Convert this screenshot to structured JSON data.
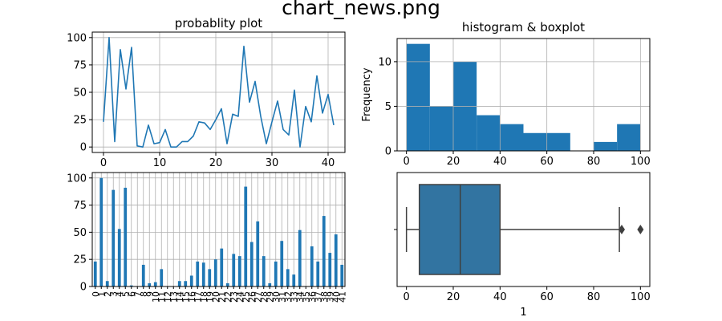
{
  "figure": {
    "suptitle": "chart_news.png"
  },
  "colors": {
    "series": "#1f77b4",
    "box": "#3274a1",
    "box_edge": "#3f3f3f",
    "grid": "#b0b0b0"
  },
  "chart_data": [
    {
      "id": "probability",
      "type": "line",
      "title": "probablity plot",
      "xlabel": "",
      "ylabel": "",
      "xlim": [
        -2,
        43
      ],
      "ylim": [
        -5,
        105
      ],
      "xticks": [
        0,
        10,
        20,
        30,
        40
      ],
      "yticks": [
        0,
        25,
        50,
        75,
        100
      ],
      "grid": true,
      "x": [
        0,
        1,
        2,
        3,
        4,
        5,
        6,
        7,
        8,
        9,
        10,
        11,
        12,
        13,
        14,
        15,
        16,
        17,
        18,
        19,
        20,
        21,
        22,
        23,
        24,
        25,
        26,
        27,
        28,
        29,
        30,
        31,
        32,
        33,
        34,
        35,
        36,
        37,
        38,
        39,
        40,
        41
      ],
      "values": [
        23,
        100,
        5,
        89,
        53,
        91,
        1,
        0,
        20,
        3,
        4,
        16,
        0,
        0,
        5,
        5,
        10,
        23,
        22,
        16,
        25,
        35,
        3,
        30,
        28,
        92,
        41,
        60,
        28,
        3,
        23,
        42,
        16,
        11,
        52,
        0,
        37,
        23,
        65,
        31,
        48,
        20
      ]
    },
    {
      "id": "histogram",
      "type": "bar",
      "title": "histogram & boxplot",
      "xlabel": "",
      "ylabel": "Frequency",
      "xlim": [
        -4,
        104
      ],
      "ylim": [
        0,
        12.6
      ],
      "xticks": [
        0,
        20,
        40,
        60,
        80,
        100
      ],
      "yticks": [
        0,
        5,
        10
      ],
      "grid": true,
      "bins": [
        [
          0,
          10
        ],
        [
          10,
          20
        ],
        [
          20,
          30
        ],
        [
          30,
          40
        ],
        [
          40,
          50
        ],
        [
          50,
          60
        ],
        [
          60,
          70
        ],
        [
          70,
          80
        ],
        [
          80,
          90
        ],
        [
          90,
          100
        ]
      ],
      "values": [
        12,
        5,
        10,
        4,
        3,
        2,
        2,
        0,
        1,
        3
      ]
    },
    {
      "id": "bars",
      "type": "bar",
      "title": "",
      "xlabel": "",
      "ylabel": "",
      "ylim": [
        0,
        105
      ],
      "yticks": [
        0,
        25,
        50,
        75,
        100
      ],
      "grid": true,
      "categories": [
        "0",
        "1",
        "2",
        "3",
        "4",
        "5",
        "6",
        "7",
        "8",
        "9",
        "10",
        "11",
        "12",
        "13",
        "14",
        "15",
        "16",
        "17",
        "18",
        "19",
        "20",
        "21",
        "22",
        "23",
        "24",
        "25",
        "26",
        "27",
        "28",
        "29",
        "30",
        "31",
        "32",
        "33",
        "34",
        "35",
        "36",
        "37",
        "38",
        "39",
        "40",
        "41"
      ],
      "values": [
        23,
        100,
        5,
        89,
        53,
        91,
        1,
        0,
        20,
        3,
        4,
        16,
        0,
        0,
        5,
        5,
        10,
        23,
        22,
        16,
        25,
        35,
        3,
        30,
        28,
        92,
        41,
        60,
        28,
        3,
        23,
        42,
        16,
        11,
        52,
        0,
        37,
        23,
        65,
        31,
        48,
        20
      ]
    },
    {
      "id": "boxplot",
      "type": "box",
      "title": "",
      "xlabel": "1",
      "ylabel": "",
      "xlim": [
        -4,
        104
      ],
      "xticks": [
        0,
        20,
        40,
        60,
        80,
        100
      ],
      "grid": false,
      "whisker_low": 0,
      "q1": 5.5,
      "median": 23,
      "q3": 40,
      "whisker_high": 91,
      "outliers": [
        92,
        100
      ]
    }
  ]
}
